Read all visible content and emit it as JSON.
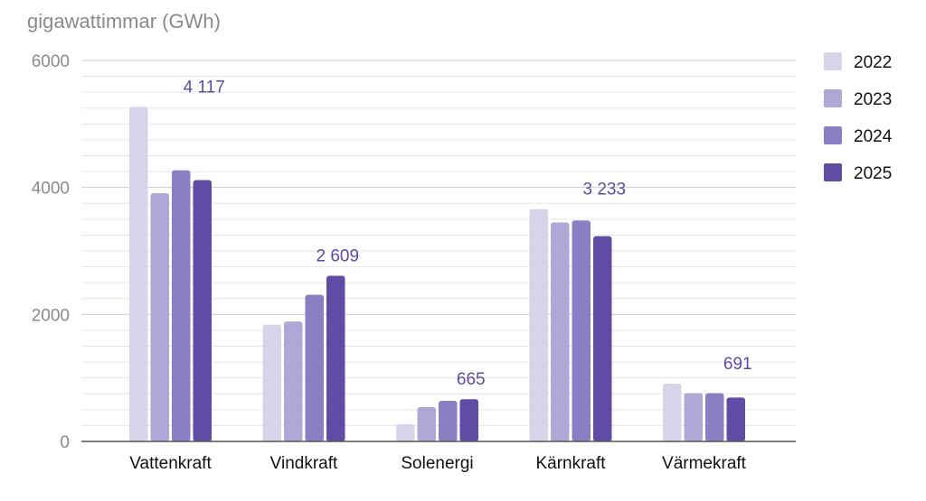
{
  "chart_data": {
    "type": "bar",
    "ylabel": "gigawattimmar (GWh)",
    "ylim": [
      0,
      6000
    ],
    "yticks": [
      0,
      2000,
      4000,
      6000
    ],
    "minor_step": 250,
    "categories": [
      "Vattenkraft",
      "Vindkraft",
      "Solenergi",
      "Kärnkraft",
      "Värmekraft"
    ],
    "series": [
      {
        "name": "2022",
        "color": "#d9d3ea",
        "values": [
          5270,
          1840,
          270,
          3660,
          910
        ]
      },
      {
        "name": "2023",
        "color": "#b1a7d6",
        "values": [
          3910,
          1890,
          540,
          3450,
          760
        ]
      },
      {
        "name": "2024",
        "color": "#8b7fc4",
        "values": [
          4270,
          2310,
          640,
          3480,
          760
        ]
      },
      {
        "name": "2025",
        "color": "#604ca5",
        "values": [
          4117,
          2609,
          665,
          3233,
          691
        ]
      }
    ],
    "data_labels": [
      "4 117",
      "2 609",
      "665",
      "3 233",
      "691"
    ],
    "data_label_series": "2025",
    "legend_position": "right",
    "grid": true
  }
}
